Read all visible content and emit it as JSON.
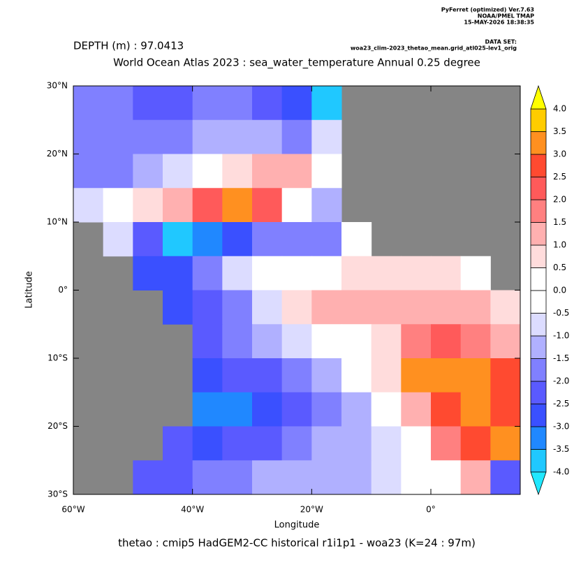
{
  "chart_data": {
    "type": "heatmap",
    "software": "PyFerret (optimized) Ver.7.63",
    "institution": "NOAA/PMEL TMAP",
    "timestamp": "15-MAY-2026 18:38:35",
    "dataset_label": "DATA SET:",
    "dataset": "woa23_clim-2023_thetao_mean.grid_atl025-lev1_orig",
    "depth": "DEPTH (m) : 97.0413",
    "title": "World Ocean Atlas 2023 : sea_water_temperature Annual  0.25 degree",
    "xlabel": "Longitude",
    "ylabel": "Latitude",
    "caption": "thetao : cmip5 HadGEM2-CC historical r1i1p1 - woa23  (K=24 : 97m)",
    "xlim": [
      -60,
      15
    ],
    "ylim": [
      -30,
      30
    ],
    "xticks": [
      {
        "value": -60,
        "label": "60°W"
      },
      {
        "value": -40,
        "label": "40°W"
      },
      {
        "value": -20,
        "label": "20°W"
      },
      {
        "value": 0,
        "label": "0°"
      }
    ],
    "yticks": [
      {
        "value": 30,
        "label": "30°N"
      },
      {
        "value": 20,
        "label": "20°N"
      },
      {
        "value": 10,
        "label": "10°N"
      },
      {
        "value": 0,
        "label": "0°"
      },
      {
        "value": -10,
        "label": "10°S"
      },
      {
        "value": -20,
        "label": "20°S"
      },
      {
        "value": -30,
        "label": "30°S"
      }
    ],
    "land_color": "#858585",
    "x": [
      -57.5,
      -52.5,
      -47.5,
      -42.5,
      -37.5,
      -32.5,
      -27.5,
      -22.5,
      -17.5,
      -12.5,
      -7.5,
      -2.5,
      2.5,
      7.5,
      12.5
    ],
    "y": [
      27.5,
      22.5,
      17.5,
      12.5,
      7.5,
      2.5,
      -2.5,
      -7.5,
      -12.5,
      -17.5,
      -22.5,
      -27.5
    ],
    "z": [
      [
        -1.5,
        -1.8,
        -2,
        -2.2,
        -1.8,
        -1.5,
        -2,
        -2.5,
        -3.5,
        null,
        null,
        null,
        null,
        null,
        null
      ],
      [
        -1.5,
        -1.8,
        -1.8,
        -1.8,
        -1.2,
        -1,
        -1.2,
        -1.5,
        -0.5,
        null,
        null,
        null,
        null,
        null,
        null
      ],
      [
        -1.5,
        -1.5,
        -1,
        -0.5,
        0.5,
        1,
        1.5,
        1.5,
        0.5,
        null,
        null,
        null,
        null,
        null,
        null
      ],
      [
        -0.5,
        0,
        1,
        1.5,
        2.5,
        3.5,
        2.5,
        0.5,
        -1,
        null,
        null,
        null,
        null,
        null,
        null
      ],
      [
        null,
        -0.5,
        -2,
        -3.5,
        -3,
        -2.5,
        -1.5,
        -1.5,
        -1.5,
        0.5,
        null,
        null,
        null,
        null,
        null
      ],
      [
        null,
        null,
        -2.5,
        -2.5,
        -1.5,
        -0.5,
        0,
        0,
        0.5,
        1,
        1,
        1,
        1,
        0.5,
        null
      ],
      [
        null,
        null,
        null,
        -2.5,
        -2,
        -1.5,
        -0.5,
        1,
        1.5,
        1.5,
        1.5,
        1.5,
        1.5,
        1.5,
        1
      ],
      [
        null,
        null,
        null,
        null,
        -2,
        -1.5,
        -1,
        -0.5,
        0,
        0.5,
        1,
        2,
        2.5,
        2,
        1.5
      ],
      [
        null,
        null,
        null,
        null,
        -2.5,
        -2,
        -2,
        -1.5,
        -1,
        0,
        1,
        3.5,
        3.5,
        3.5,
        3
      ],
      [
        null,
        null,
        null,
        null,
        -3,
        -3,
        -2.5,
        -2,
        -1.5,
        -1,
        0,
        1.5,
        3,
        3.5,
        3
      ],
      [
        null,
        null,
        null,
        -2,
        -2.5,
        -2,
        -2,
        -1.5,
        -1.2,
        -1,
        -0.5,
        0.5,
        2,
        3,
        3.5
      ],
      [
        null,
        null,
        -2,
        -2,
        -1.5,
        -1.5,
        -1.2,
        -1,
        -1,
        -1,
        -0.5,
        0,
        0.5,
        1.5,
        -2
      ]
    ],
    "cbar_ticks": [
      {
        "value": -4,
        "label": "-4.0"
      },
      {
        "value": -3.5,
        "label": "-3.5"
      },
      {
        "value": -3,
        "label": "-3.0"
      },
      {
        "value": -2.5,
        "label": "-2.5"
      },
      {
        "value": -2,
        "label": "-2.0"
      },
      {
        "value": -1.5,
        "label": "-1.5"
      },
      {
        "value": -1,
        "label": "-1.0"
      },
      {
        "value": -0.5,
        "label": "-0.5"
      },
      {
        "value": 0,
        "label": "0.0"
      },
      {
        "value": 0.5,
        "label": "0.5"
      },
      {
        "value": 1,
        "label": "1.0"
      },
      {
        "value": 1.5,
        "label": "1.5"
      },
      {
        "value": 2,
        "label": "2.0"
      },
      {
        "value": 2.5,
        "label": "2.5"
      },
      {
        "value": 3,
        "label": "3.0"
      },
      {
        "value": 3.5,
        "label": "3.5"
      },
      {
        "value": 4,
        "label": "4.0"
      }
    ],
    "colors": [
      "#20c8ff",
      "#2088ff",
      "#3a50ff",
      "#5a5aff",
      "#8080ff",
      "#b0b0ff",
      "#dcdcff",
      "#ffffff",
      "#ffffff",
      "#ffdcdc",
      "#ffb0b0",
      "#ff8080",
      "#ff5a5a",
      "#ff4a30",
      "#ff9020",
      "#ffcc00"
    ],
    "under_color": "#20e8ff",
    "over_color": "#ffff00"
  }
}
